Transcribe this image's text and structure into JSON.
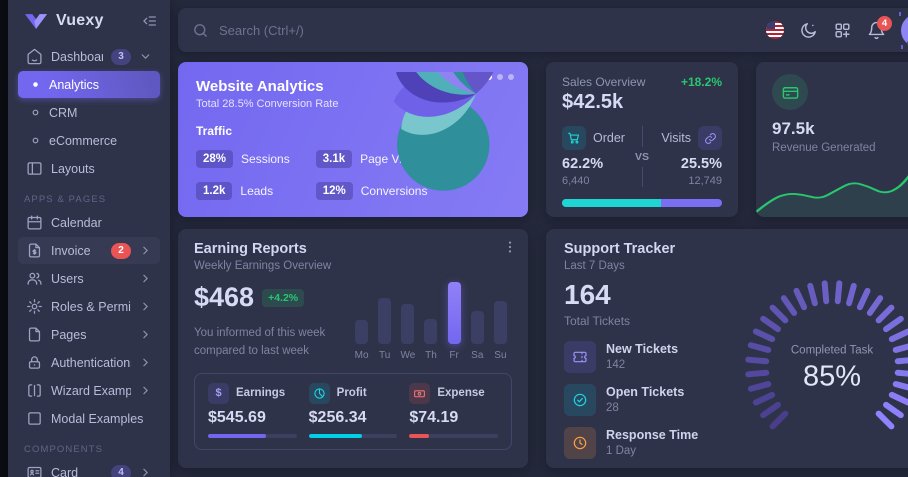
{
  "sidebar": {
    "brand": "Vuexy",
    "sections": [
      {
        "header": "",
        "items": [
          {
            "label": "Dashboard",
            "badge": "3"
          },
          {
            "label": "Analytics"
          },
          {
            "label": "CRM"
          },
          {
            "label": "eCommerce"
          },
          {
            "label": "Layouts"
          }
        ]
      },
      {
        "header": "Apps & Pages",
        "items": [
          {
            "label": "Calendar"
          },
          {
            "label": "Invoice",
            "badge": "2"
          },
          {
            "label": "Users"
          },
          {
            "label": "Roles & Permissions"
          },
          {
            "label": "Pages"
          },
          {
            "label": "Authentications"
          },
          {
            "label": "Wizard Examples"
          },
          {
            "label": "Modal Examples"
          }
        ]
      },
      {
        "header": "Components",
        "items": [
          {
            "label": "Card",
            "badge": "4"
          }
        ]
      }
    ]
  },
  "topbar": {
    "search_placeholder": "Search (Ctrl+/)",
    "notification_count": "4"
  },
  "website_analytics": {
    "title": "Website Analytics",
    "subtitle": "Total 28.5% Conversion Rate",
    "section_label": "Traffic",
    "stats": [
      {
        "value": "28%",
        "label": "Sessions"
      },
      {
        "value": "3.1k",
        "label": "Page Views"
      },
      {
        "value": "1.2k",
        "label": "Leads"
      },
      {
        "value": "12%",
        "label": "Conversions"
      }
    ]
  },
  "sales_overview": {
    "title": "Sales Overview",
    "change": "+18.2%",
    "total": "$42.5k",
    "order": {
      "label": "Order",
      "percent": "62.2%",
      "count": "6,440"
    },
    "versus_label": "VS",
    "visits": {
      "label": "Visits",
      "percent": "25.5%",
      "count": "12,749"
    },
    "progress_order_pct": 62
  },
  "revenue_generated": {
    "value": "97.5k",
    "label": "Revenue Generated",
    "trend_y": [
      88,
      70,
      62,
      64,
      70,
      58,
      46,
      52,
      63,
      54,
      25,
      20,
      27
    ]
  },
  "earning_reports": {
    "title": "Earning Reports",
    "subtitle": "Weekly Earnings Overview",
    "amount": "$468",
    "change_badge": "+4.2%",
    "note_line1": "You informed of this week",
    "note_line2": "compared to last week",
    "chart": {
      "categories": [
        "Mo",
        "Tu",
        "We",
        "Th",
        "Fr",
        "Sa",
        "Su"
      ],
      "values": [
        38,
        74,
        65,
        40,
        100,
        53,
        69
      ],
      "highlight": "Fr"
    },
    "stats": [
      {
        "label": "Earnings",
        "value": "$545.69",
        "progress": 65,
        "color": "#7367f0"
      },
      {
        "label": "Profit",
        "value": "$256.34",
        "progress": 60,
        "color": "#00cfe8"
      },
      {
        "label": "Expense",
        "value": "$74.19",
        "progress": 22,
        "color": "#ea5455"
      }
    ]
  },
  "support_tracker": {
    "title": "Support Tracker",
    "subtitle": "Last 7 Days",
    "total": "164",
    "total_label": "Total Tickets",
    "items": [
      {
        "label": "New Tickets",
        "value": "142"
      },
      {
        "label": "Open Tickets",
        "value": "28"
      },
      {
        "label": "Response Time",
        "value": "1 Day"
      }
    ],
    "gauge": {
      "percent": 85,
      "label": "Completed Task",
      "display": "85%"
    }
  },
  "chart_data": [
    {
      "type": "bar",
      "title": "Weekly Earnings Overview",
      "categories": [
        "Mo",
        "Tu",
        "We",
        "Th",
        "Fr",
        "Sa",
        "Su"
      ],
      "values": [
        38,
        74,
        65,
        40,
        100,
        53,
        69
      ],
      "highlight": "Fr",
      "ylim": [
        0,
        100
      ]
    },
    {
      "type": "line",
      "title": "Revenue Generated trend",
      "x": [
        0,
        1,
        2,
        3,
        4,
        5,
        6,
        7,
        8,
        9,
        10,
        11,
        12
      ],
      "y": [
        10,
        28,
        37,
        34,
        28,
        41,
        54,
        48,
        36,
        45,
        77,
        82,
        75
      ]
    },
    {
      "type": "gauge",
      "title": "Completed Task",
      "value": 85,
      "max": 100
    },
    {
      "type": "progress",
      "title": "Order vs Visits",
      "series": [
        {
          "name": "Order",
          "value": 62.2
        },
        {
          "name": "Visits",
          "value": 25.5
        }
      ]
    }
  ],
  "colors": {
    "primary": "#7367f0",
    "success": "#28c76f",
    "danger": "#ea5455",
    "warning": "#ff9f43",
    "info": "#00cfe8",
    "card_bg": "#2f3349",
    "body_bg": "#25293c"
  }
}
